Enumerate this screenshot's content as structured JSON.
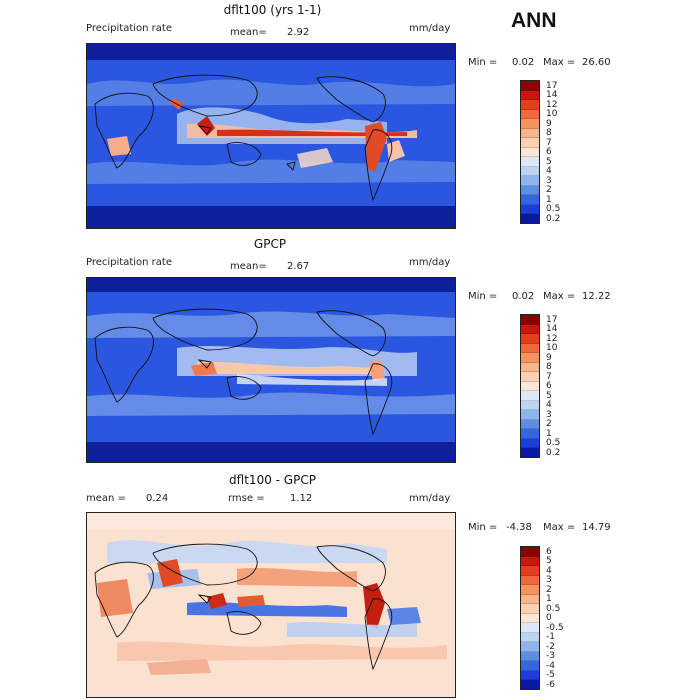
{
  "season": "ANN",
  "panels": [
    {
      "title": "dflt100 (yrs 1-1)",
      "left_label": "Precipitation rate",
      "stat_label": "mean=",
      "stat_value": "2.92",
      "units": "mm/day",
      "min_label": "Min =",
      "min_value": "0.02",
      "max_label": "Max =",
      "max_value": "26.60",
      "colorbar": {
        "labels": [
          "17",
          "14",
          "12",
          "10",
          "9",
          "8",
          "7",
          "6",
          "5",
          "4",
          "3",
          "2",
          "1",
          "0.5",
          "0.2"
        ],
        "colors": [
          "#8b0000",
          "#c8180e",
          "#e0401b",
          "#ef6a3a",
          "#f5935f",
          "#f8b48b",
          "#fbd0b0",
          "#fde6d6",
          "#dde8f7",
          "#bcd3f2",
          "#8fb4ec",
          "#5e8ee4",
          "#3466e0",
          "#1c3ed6",
          "#0a1a9e"
        ]
      }
    },
    {
      "title": "GPCP",
      "left_label": "Precipitation rate",
      "stat_label": "mean=",
      "stat_value": "2.67",
      "units": "mm/day",
      "min_label": "Min =",
      "min_value": "0.02",
      "max_label": "Max =",
      "max_value": "12.22",
      "colorbar": {
        "labels": [
          "17",
          "14",
          "12",
          "10",
          "9",
          "8",
          "7",
          "6",
          "5",
          "4",
          "3",
          "2",
          "1",
          "0.5",
          "0.2"
        ],
        "colors": [
          "#8b0000",
          "#c8180e",
          "#e0401b",
          "#ef6a3a",
          "#f5935f",
          "#f8b48b",
          "#fbd0b0",
          "#fde6d6",
          "#dde8f7",
          "#bcd3f2",
          "#8fb4ec",
          "#5e8ee4",
          "#3466e0",
          "#1c3ed6",
          "#0a1a9e"
        ]
      }
    },
    {
      "title": "dflt100 - GPCP",
      "mean_label": "mean =",
      "mean_value": "0.24",
      "rmse_label": "rmse =",
      "rmse_value": "1.12",
      "units": "mm/day",
      "min_label": "Min =",
      "min_value": "-4.38",
      "max_label": "Max =",
      "max_value": "14.79",
      "colorbar": {
        "labels": [
          "6",
          "5",
          "4",
          "3",
          "2",
          "1",
          "0.5",
          "0",
          "-0.5",
          "-1",
          "-2",
          "-3",
          "-4",
          "-5",
          "-6"
        ],
        "colors": [
          "#8b0000",
          "#c8180e",
          "#e0401b",
          "#ef6a3a",
          "#f5935f",
          "#f8b48b",
          "#fbd0b0",
          "#fde6d6",
          "#dde8f7",
          "#bcd3f2",
          "#8fb4ec",
          "#5e8ee4",
          "#3466e0",
          "#1c3ed6",
          "#0a1a9e"
        ]
      }
    }
  ]
}
